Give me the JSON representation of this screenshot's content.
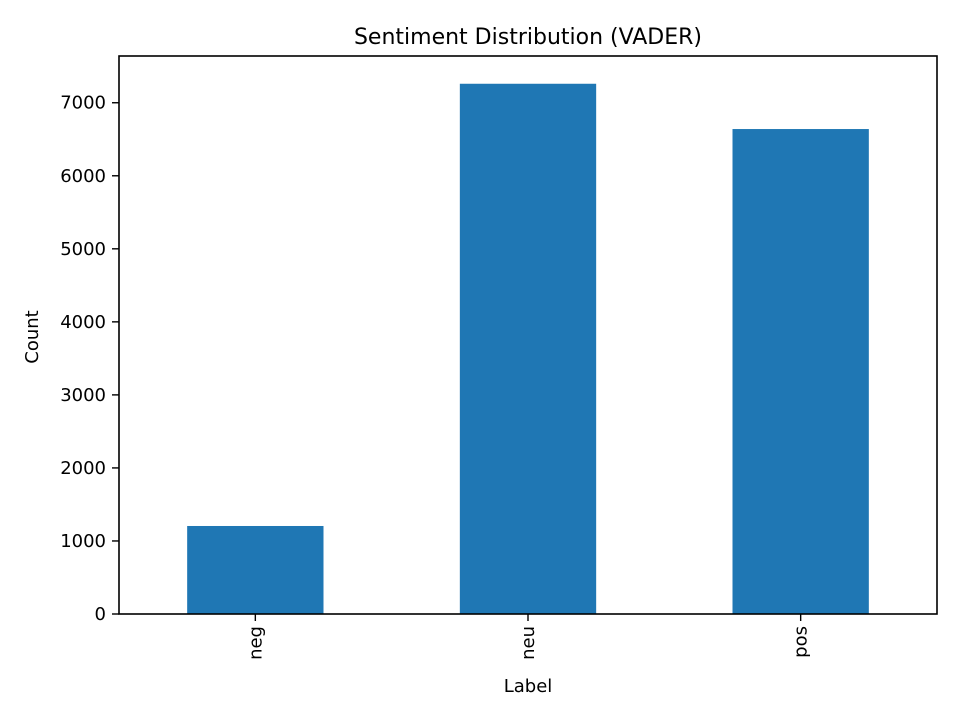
{
  "chart_data": {
    "type": "bar",
    "title": "Sentiment Distribution (VADER)",
    "xlabel": "Label",
    "ylabel": "Count",
    "categories": [
      "neg",
      "neu",
      "pos"
    ],
    "values": [
      1205,
      7260,
      6640
    ],
    "ylim": [
      0,
      7640
    ],
    "yticks": [
      0,
      1000,
      2000,
      3000,
      4000,
      5000,
      6000,
      7000
    ],
    "grid": false,
    "legend": "none",
    "xtick_rotation": "vertical",
    "bar_color": "#1f77b4"
  }
}
